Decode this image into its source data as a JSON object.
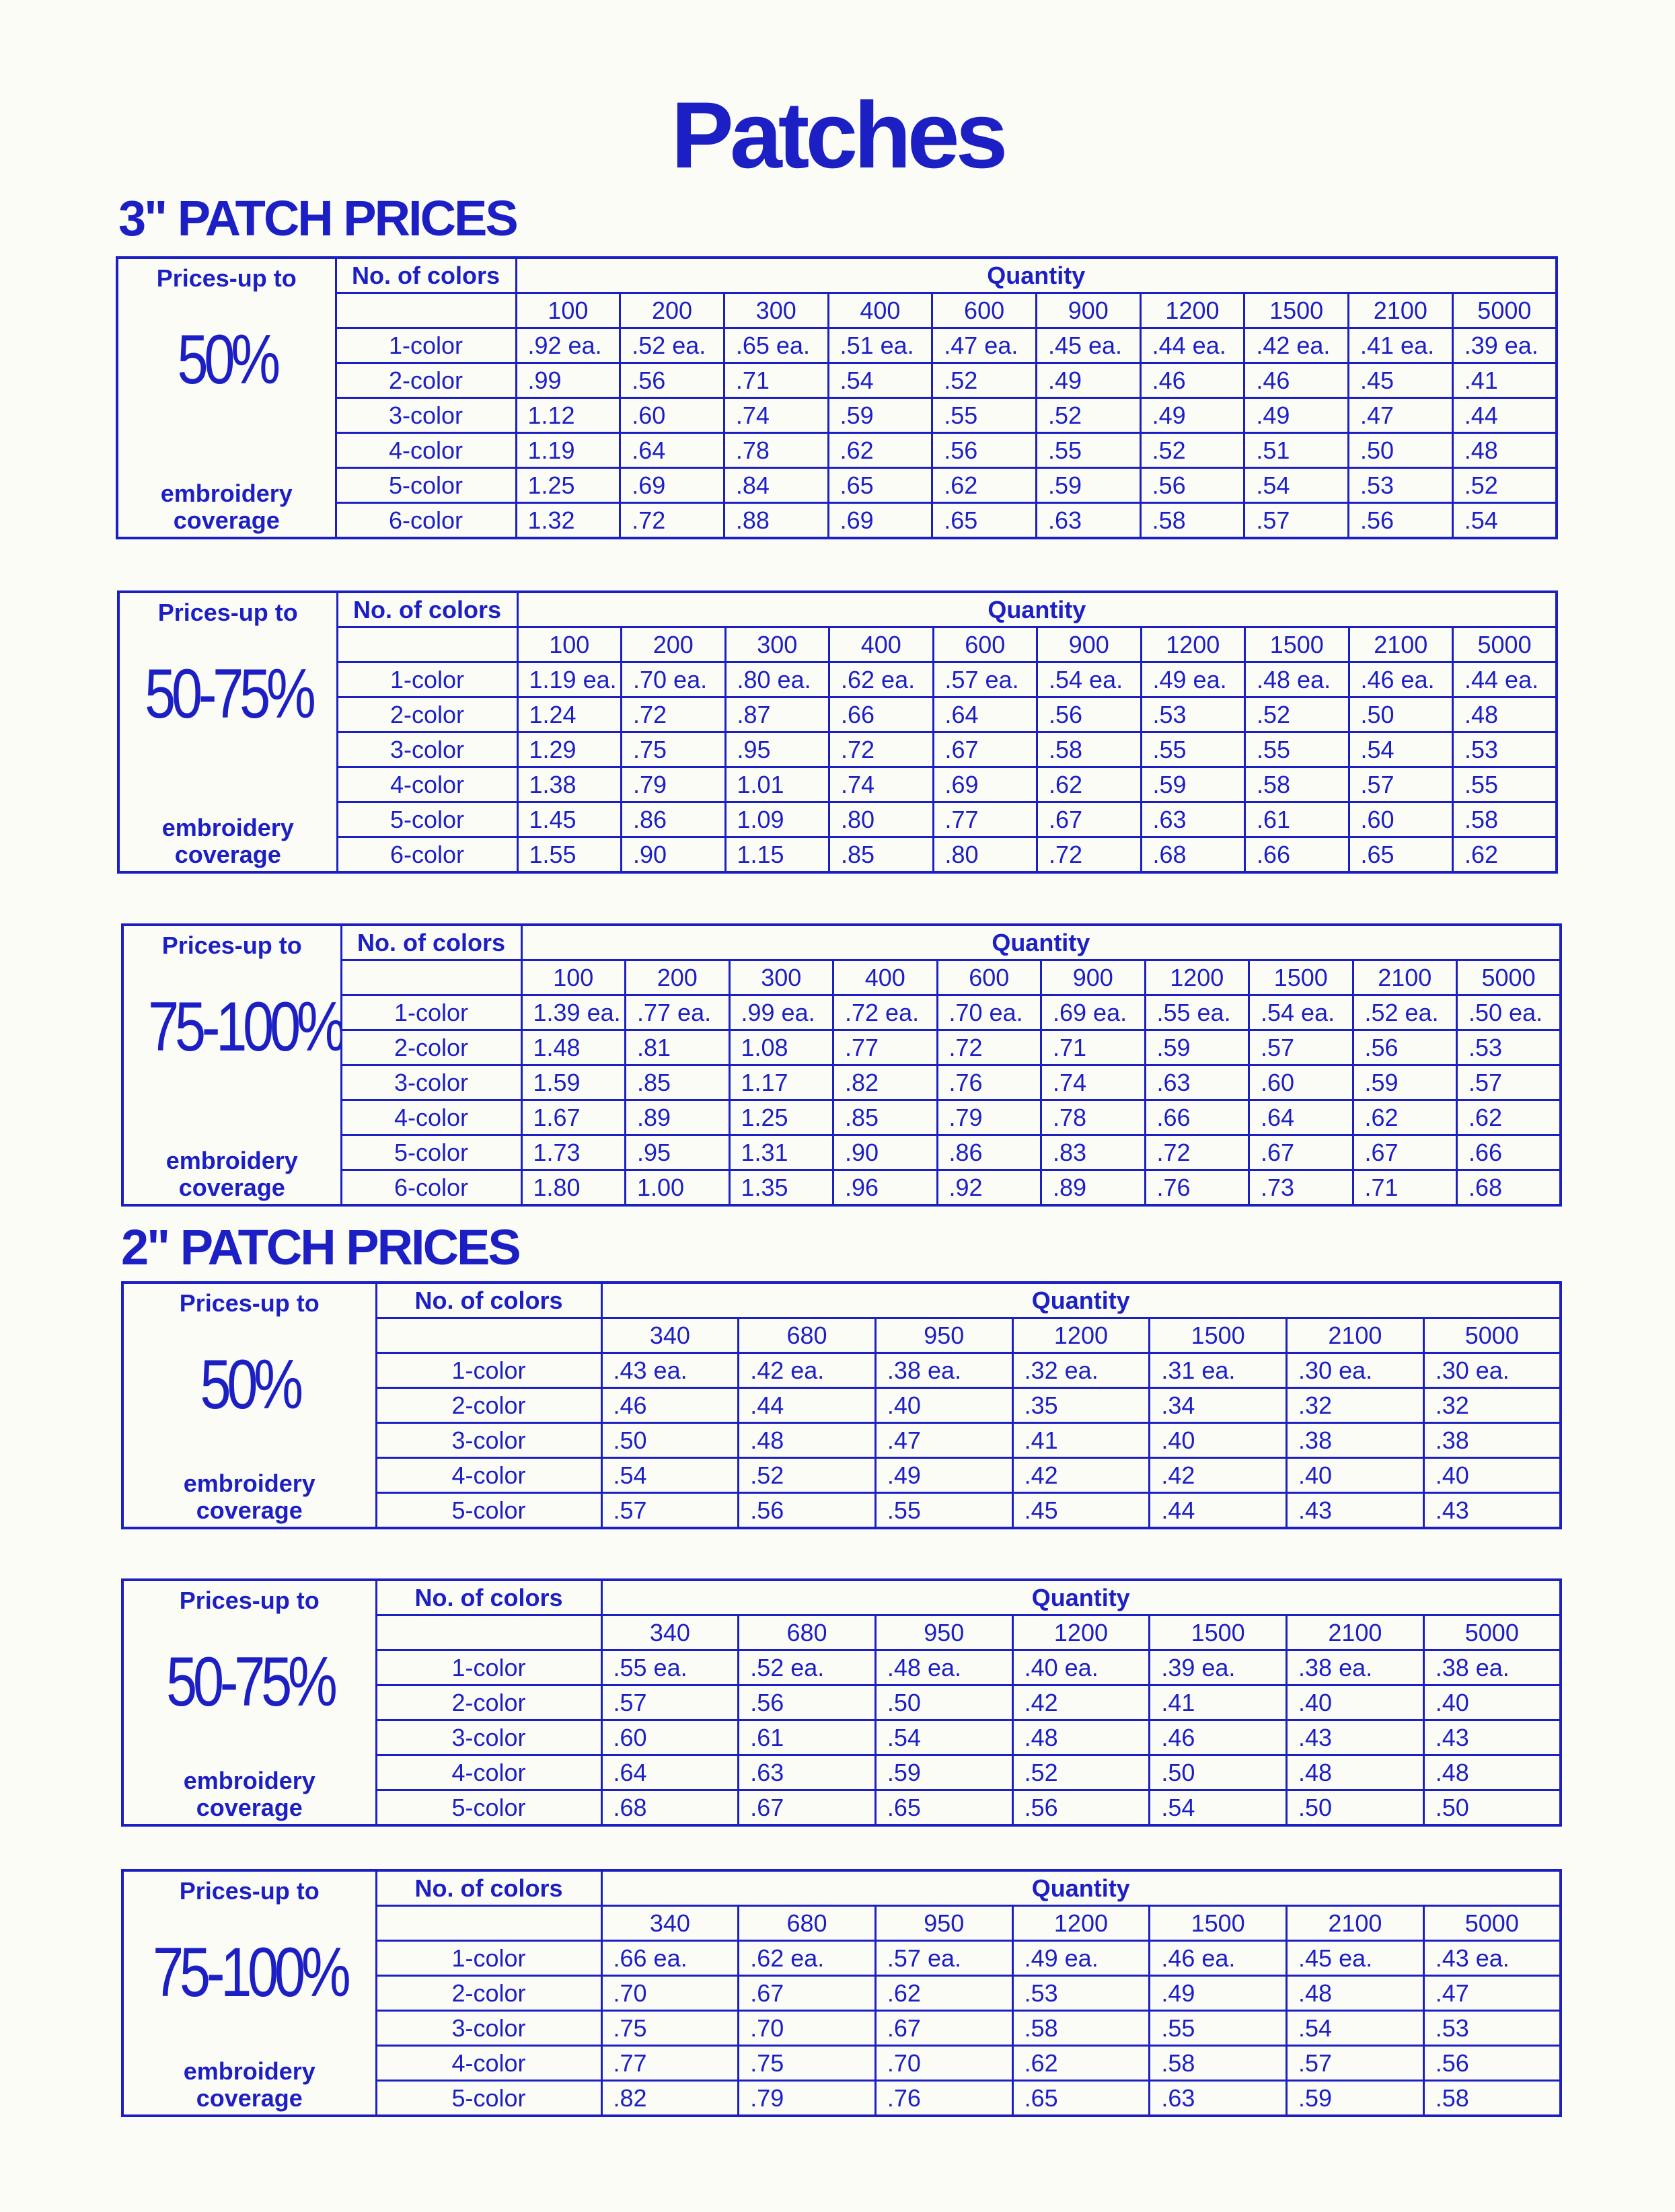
{
  "title": "Patches",
  "sections": [
    {
      "heading": "3\" PATCH PRICES",
      "tables": [
        {
          "prices_label": "Prices-up to",
          "coverage": "50%",
          "coverage_label": [
            "embroidery",
            "coverage"
          ],
          "colors_header": "No. of colors",
          "quantity_header": "Quantity",
          "quantities": [
            "100",
            "200",
            "300",
            "400",
            "600",
            "900",
            "1200",
            "1500",
            "2100",
            "5000"
          ],
          "rows": [
            {
              "colors": "1-color",
              "prices": [
                ".92 ea.",
                ".52 ea.",
                ".65 ea.",
                ".51 ea.",
                ".47 ea.",
                ".45 ea.",
                ".44 ea.",
                ".42 ea.",
                ".41 ea.",
                ".39 ea."
              ]
            },
            {
              "colors": "2-color",
              "prices": [
                ".99",
                ".56",
                ".71",
                ".54",
                ".52",
                ".49",
                ".46",
                ".46",
                ".45",
                ".41"
              ]
            },
            {
              "colors": "3-color",
              "prices": [
                "1.12",
                ".60",
                ".74",
                ".59",
                ".55",
                ".52",
                ".49",
                ".49",
                ".47",
                ".44"
              ]
            },
            {
              "colors": "4-color",
              "prices": [
                "1.19",
                ".64",
                ".78",
                ".62",
                ".56",
                ".55",
                ".52",
                ".51",
                ".50",
                ".48"
              ]
            },
            {
              "colors": "5-color",
              "prices": [
                "1.25",
                ".69",
                ".84",
                ".65",
                ".62",
                ".59",
                ".56",
                ".54",
                ".53",
                ".52"
              ]
            },
            {
              "colors": "6-color",
              "prices": [
                "1.32",
                ".72",
                ".88",
                ".69",
                ".65",
                ".63",
                ".58",
                ".57",
                ".56",
                ".54"
              ]
            }
          ]
        },
        {
          "prices_label": "Prices-up to",
          "coverage": "50-75%",
          "coverage_label": [
            "embroidery",
            "coverage"
          ],
          "colors_header": "No. of colors",
          "quantity_header": "Quantity",
          "quantities": [
            "100",
            "200",
            "300",
            "400",
            "600",
            "900",
            "1200",
            "1500",
            "2100",
            "5000"
          ],
          "rows": [
            {
              "colors": "1-color",
              "prices": [
                "1.19 ea.",
                ".70 ea.",
                ".80 ea.",
                ".62 ea.",
                ".57 ea.",
                ".54 ea.",
                ".49 ea.",
                ".48 ea.",
                ".46 ea.",
                ".44 ea."
              ]
            },
            {
              "colors": "2-color",
              "prices": [
                "1.24",
                ".72",
                ".87",
                ".66",
                ".64",
                ".56",
                ".53",
                ".52",
                ".50",
                ".48"
              ]
            },
            {
              "colors": "3-color",
              "prices": [
                "1.29",
                ".75",
                ".95",
                ".72",
                ".67",
                ".58",
                ".55",
                ".55",
                ".54",
                ".53"
              ]
            },
            {
              "colors": "4-color",
              "prices": [
                "1.38",
                ".79",
                "1.01",
                ".74",
                ".69",
                ".62",
                ".59",
                ".58",
                ".57",
                ".55"
              ]
            },
            {
              "colors": "5-color",
              "prices": [
                "1.45",
                ".86",
                "1.09",
                ".80",
                ".77",
                ".67",
                ".63",
                ".61",
                ".60",
                ".58"
              ]
            },
            {
              "colors": "6-color",
              "prices": [
                "1.55",
                ".90",
                "1.15",
                ".85",
                ".80",
                ".72",
                ".68",
                ".66",
                ".65",
                ".62"
              ]
            }
          ]
        },
        {
          "prices_label": "Prices-up to",
          "coverage": "75-100%",
          "coverage_label": [
            "embroidery",
            "coverage"
          ],
          "colors_header": "No. of colors",
          "quantity_header": "Quantity",
          "quantities": [
            "100",
            "200",
            "300",
            "400",
            "600",
            "900",
            "1200",
            "1500",
            "2100",
            "5000"
          ],
          "rows": [
            {
              "colors": "1-color",
              "prices": [
                "1.39 ea.",
                ".77 ea.",
                ".99 ea.",
                ".72 ea.",
                ".70 ea.",
                ".69 ea.",
                ".55 ea.",
                ".54 ea.",
                ".52 ea.",
                ".50 ea."
              ]
            },
            {
              "colors": "2-color",
              "prices": [
                "1.48",
                ".81",
                "1.08",
                ".77",
                ".72",
                ".71",
                ".59",
                ".57",
                ".56",
                ".53"
              ]
            },
            {
              "colors": "3-color",
              "prices": [
                "1.59",
                ".85",
                "1.17",
                ".82",
                ".76",
                ".74",
                ".63",
                ".60",
                ".59",
                ".57"
              ]
            },
            {
              "colors": "4-color",
              "prices": [
                "1.67",
                ".89",
                "1.25",
                ".85",
                ".79",
                ".78",
                ".66",
                ".64",
                ".62",
                ".62"
              ]
            },
            {
              "colors": "5-color",
              "prices": [
                "1.73",
                ".95",
                "1.31",
                ".90",
                ".86",
                ".83",
                ".72",
                ".67",
                ".67",
                ".66"
              ]
            },
            {
              "colors": "6-color",
              "prices": [
                "1.80",
                "1.00",
                "1.35",
                ".96",
                ".92",
                ".89",
                ".76",
                ".73",
                ".71",
                ".68"
              ]
            }
          ]
        }
      ]
    },
    {
      "heading": "2\" PATCH PRICES",
      "tables": [
        {
          "prices_label": "Prices-up to",
          "coverage": "50%",
          "coverage_label": [
            "embroidery",
            "coverage"
          ],
          "colors_header": "No. of colors",
          "quantity_header": "Quantity",
          "quantities": [
            "340",
            "680",
            "950",
            "1200",
            "1500",
            "2100",
            "5000"
          ],
          "rows": [
            {
              "colors": "1-color",
              "prices": [
                ".43 ea.",
                ".42 ea.",
                ".38 ea.",
                ".32 ea.",
                ".31 ea.",
                ".30 ea.",
                ".30 ea."
              ]
            },
            {
              "colors": "2-color",
              "prices": [
                ".46",
                ".44",
                ".40",
                ".35",
                ".34",
                ".32",
                ".32"
              ]
            },
            {
              "colors": "3-color",
              "prices": [
                ".50",
                ".48",
                ".47",
                ".41",
                ".40",
                ".38",
                ".38"
              ]
            },
            {
              "colors": "4-color",
              "prices": [
                ".54",
                ".52",
                ".49",
                ".42",
                ".42",
                ".40",
                ".40"
              ]
            },
            {
              "colors": "5-color",
              "prices": [
                ".57",
                ".56",
                ".55",
                ".45",
                ".44",
                ".43",
                ".43"
              ]
            }
          ]
        },
        {
          "prices_label": "Prices-up to",
          "coverage": "50-75%",
          "coverage_label": [
            "embroidery",
            "coverage"
          ],
          "colors_header": "No. of colors",
          "quantity_header": "Quantity",
          "quantities": [
            "340",
            "680",
            "950",
            "1200",
            "1500",
            "2100",
            "5000"
          ],
          "rows": [
            {
              "colors": "1-color",
              "prices": [
                ".55 ea.",
                ".52 ea.",
                ".48 ea.",
                ".40 ea.",
                ".39 ea.",
                ".38 ea.",
                ".38 ea."
              ]
            },
            {
              "colors": "2-color",
              "prices": [
                ".57",
                ".56",
                ".50",
                ".42",
                ".41",
                ".40",
                ".40"
              ]
            },
            {
              "colors": "3-color",
              "prices": [
                ".60",
                ".61",
                ".54",
                ".48",
                ".46",
                ".43",
                ".43"
              ]
            },
            {
              "colors": "4-color",
              "prices": [
                ".64",
                ".63",
                ".59",
                ".52",
                ".50",
                ".48",
                ".48"
              ]
            },
            {
              "colors": "5-color",
              "prices": [
                ".68",
                ".67",
                ".65",
                ".56",
                ".54",
                ".50",
                ".50"
              ]
            }
          ]
        },
        {
          "prices_label": "Prices-up to",
          "coverage": "75-100%",
          "coverage_label": [
            "embroidery",
            "coverage"
          ],
          "colors_header": "No. of colors",
          "quantity_header": "Quantity",
          "quantities": [
            "340",
            "680",
            "950",
            "1200",
            "1500",
            "2100",
            "5000"
          ],
          "rows": [
            {
              "colors": "1-color",
              "prices": [
                ".66 ea.",
                ".62 ea.",
                ".57 ea.",
                ".49 ea.",
                ".46 ea.",
                ".45 ea.",
                ".43 ea."
              ]
            },
            {
              "colors": "2-color",
              "prices": [
                ".70",
                ".67",
                ".62",
                ".53",
                ".49",
                ".48",
                ".47"
              ]
            },
            {
              "colors": "3-color",
              "prices": [
                ".75",
                ".70",
                ".67",
                ".58",
                ".55",
                ".54",
                ".53"
              ]
            },
            {
              "colors": "4-color",
              "prices": [
                ".77",
                ".75",
                ".70",
                ".62",
                ".58",
                ".57",
                ".56"
              ]
            },
            {
              "colors": "5-color",
              "prices": [
                ".82",
                ".79",
                ".76",
                ".65",
                ".63",
                ".59",
                ".58"
              ]
            }
          ]
        }
      ]
    }
  ],
  "colors": {
    "ink": "#1c1fc4",
    "paper": "#fcfcf7"
  }
}
